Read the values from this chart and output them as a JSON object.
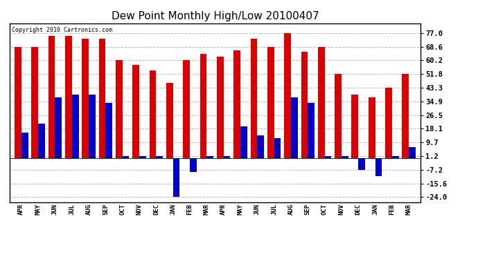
{
  "title": "Dew Point Monthly High/Low 20100407",
  "copyright": "Copyright 2010 Cartronics.com",
  "categories": [
    "APR",
    "MAY",
    "JUN",
    "JUL",
    "AUG",
    "SEP",
    "OCT",
    "NOV",
    "DEC",
    "JAN",
    "FEB",
    "MAR",
    "APR",
    "MAY",
    "JUN",
    "JUL",
    "AUG",
    "SEP",
    "OCT",
    "NOV",
    "DEC",
    "JAN",
    "FEB",
    "MAR"
  ],
  "highs": [
    68.6,
    68.6,
    75.2,
    75.2,
    73.4,
    73.4,
    60.2,
    57.2,
    54.0,
    46.4,
    60.2,
    64.4,
    62.6,
    66.2,
    73.4,
    68.6,
    77.0,
    65.3,
    68.6,
    52.0,
    39.2,
    37.4,
    43.3,
    51.8
  ],
  "lows": [
    15.8,
    21.2,
    37.4,
    39.2,
    39.2,
    33.8,
    1.2,
    1.2,
    1.2,
    -23.8,
    -8.6,
    1.2,
    1.2,
    19.4,
    14.0,
    12.2,
    37.4,
    33.8,
    1.2,
    1.2,
    -7.2,
    -11.2,
    1.2,
    6.8
  ],
  "bar_color_high": "#dd0000",
  "bar_color_low": "#0000cc",
  "yticks": [
    77.0,
    68.6,
    60.2,
    51.8,
    43.3,
    34.9,
    26.5,
    18.1,
    9.7,
    1.2,
    -7.2,
    -15.6,
    -24.0
  ],
  "ylim": [
    -27.0,
    83.0
  ],
  "background_color": "#ffffff",
  "grid_color": "#aaaaaa",
  "title_fontsize": 11,
  "bar_width": 0.4,
  "fig_width": 6.9,
  "fig_height": 3.75
}
